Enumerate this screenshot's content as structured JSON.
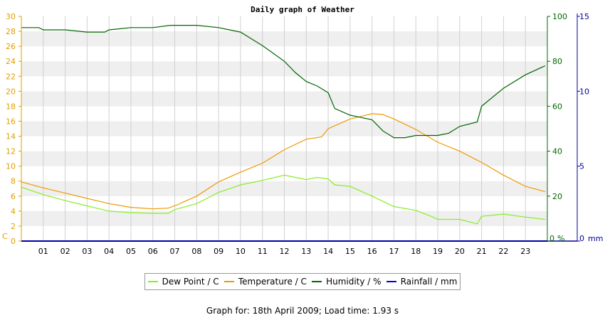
{
  "chart_data": {
    "type": "line",
    "title": "Daily graph of Weather",
    "x_ticks": [
      "01",
      "02",
      "03",
      "04",
      "05",
      "06",
      "07",
      "08",
      "09",
      "10",
      "11",
      "12",
      "13",
      "14",
      "15",
      "16",
      "17",
      "18",
      "19",
      "20",
      "21",
      "22",
      "23"
    ],
    "xlim": [
      0,
      24
    ],
    "left_axis": {
      "unit": "C",
      "ticks": [
        0,
        2,
        4,
        6,
        8,
        10,
        12,
        14,
        16,
        18,
        20,
        22,
        24,
        26,
        28,
        30
      ],
      "ylim": [
        0,
        30
      ],
      "color": "#e0a000"
    },
    "right_axis_1": {
      "unit": "%",
      "ticks": [
        0,
        20,
        40,
        60,
        80,
        100
      ],
      "ylim": [
        0,
        100
      ],
      "color": "#006600"
    },
    "right_axis_2": {
      "unit": "mm",
      "ticks": [
        0,
        5,
        10,
        15
      ],
      "ylim": [
        0,
        15
      ],
      "color": "#000099"
    },
    "series": [
      {
        "name": "Dew Point / C",
        "axis": "left",
        "color": "#88ee22",
        "x": [
          0,
          1,
          2,
          3,
          4,
          5,
          6,
          6.7,
          7,
          8,
          9,
          9.5,
          10,
          11,
          12,
          13,
          13.5,
          14,
          14.3,
          15,
          16,
          17,
          18,
          18.7,
          19,
          20,
          20.8,
          21,
          22,
          23,
          23.9
        ],
        "y": [
          7.2,
          6.2,
          5.4,
          4.7,
          4.0,
          3.8,
          3.7,
          3.7,
          4.2,
          5.0,
          6.5,
          7.0,
          7.5,
          8.1,
          8.8,
          8.2,
          8.5,
          8.3,
          7.5,
          7.3,
          6.0,
          4.6,
          4.1,
          3.3,
          2.9,
          2.9,
          2.3,
          3.3,
          3.6,
          3.2,
          2.9
        ]
      },
      {
        "name": "Temperature / C",
        "axis": "left",
        "color": "#ee9900",
        "x": [
          0,
          1,
          2,
          3,
          4,
          5,
          6,
          6.7,
          7,
          8,
          9,
          10,
          11,
          12,
          13,
          13.7,
          14,
          15,
          16,
          16.5,
          17,
          18,
          19,
          20,
          21,
          22,
          23,
          23.9
        ],
        "y": [
          7.9,
          7.1,
          6.4,
          5.7,
          5.0,
          4.5,
          4.3,
          4.4,
          4.7,
          6.0,
          7.9,
          9.2,
          10.4,
          12.2,
          13.6,
          13.9,
          15.0,
          16.3,
          17.0,
          16.9,
          16.3,
          14.9,
          13.2,
          12.0,
          10.5,
          8.8,
          7.3,
          6.6
        ]
      },
      {
        "name": "Humidity / %",
        "axis": "right1",
        "color": "#006600",
        "x": [
          0,
          0.8,
          1,
          2,
          3,
          3.8,
          4,
          5,
          6,
          6.8,
          7,
          8,
          9,
          9.5,
          10,
          10.5,
          11,
          12,
          12.5,
          13,
          13.5,
          14,
          14.3,
          15,
          16,
          16.5,
          17,
          17.5,
          18,
          19,
          19.5,
          20,
          20.8,
          21,
          22,
          23,
          23.9
        ],
        "y": [
          95,
          95,
          94,
          94,
          93,
          93,
          94,
          95,
          95,
          96,
          96,
          96,
          95,
          94,
          93,
          90,
          87,
          80,
          75,
          71,
          69,
          66,
          59,
          56,
          54,
          49,
          46,
          46,
          47,
          47,
          48,
          51,
          53,
          60,
          68,
          74,
          78
        ]
      },
      {
        "name": "Rainfall / mm",
        "axis": "right2",
        "color": "#0000cc",
        "x": [
          0,
          24
        ],
        "y": [
          0,
          0
        ]
      }
    ],
    "legend_position": "bottom",
    "grid": true
  },
  "footer": {
    "text": "Graph for: 18th April 2009; Load time: 1.93 s"
  }
}
